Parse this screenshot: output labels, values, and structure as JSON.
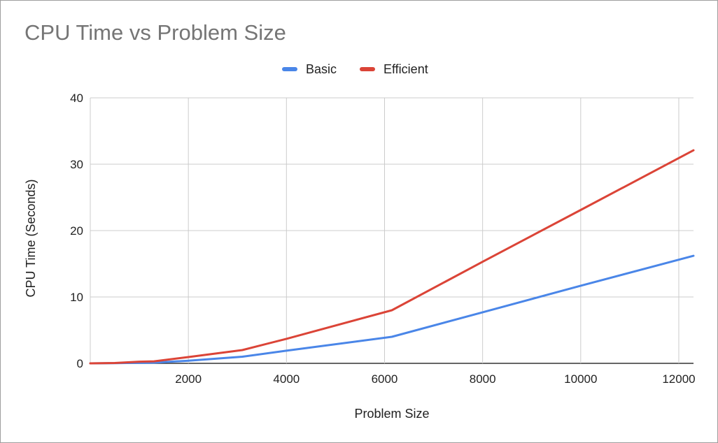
{
  "chart_data": {
    "type": "line",
    "title": "CPU Time vs Problem Size",
    "xlabel": "Problem Size",
    "ylabel": "CPU Time (Seconds)",
    "xlim": [
      0,
      12300
    ],
    "ylim": [
      0,
      40
    ],
    "x_ticks": [
      "2000",
      "4000",
      "6000",
      "8000",
      "10000",
      "12000"
    ],
    "x_tick_values": [
      2000,
      4000,
      6000,
      8000,
      10000,
      12000
    ],
    "y_ticks": [
      "0",
      "10",
      "20",
      "30",
      "40"
    ],
    "y_tick_values": [
      0,
      10,
      20,
      30,
      40
    ],
    "grid": true,
    "legend_position": "top-center",
    "series": [
      {
        "name": "Basic",
        "color": "#4a86e8",
        "points": [
          [
            0,
            0
          ],
          [
            500,
            0.02
          ],
          [
            1000,
            0.07
          ],
          [
            1300,
            0.1
          ],
          [
            2000,
            0.4
          ],
          [
            3100,
            1.0
          ],
          [
            4000,
            1.9
          ],
          [
            6150,
            4.0
          ],
          [
            8000,
            7.7
          ],
          [
            10000,
            11.7
          ],
          [
            12300,
            16.2
          ]
        ]
      },
      {
        "name": "Efficient",
        "color": "#db4437",
        "points": [
          [
            0,
            0
          ],
          [
            500,
            0.05
          ],
          [
            1000,
            0.25
          ],
          [
            1300,
            0.3
          ],
          [
            2000,
            0.95
          ],
          [
            3100,
            2.0
          ],
          [
            4000,
            3.7
          ],
          [
            6150,
            8.0
          ],
          [
            8000,
            15.3
          ],
          [
            10000,
            23.1
          ],
          [
            12300,
            32.1
          ]
        ]
      }
    ]
  }
}
